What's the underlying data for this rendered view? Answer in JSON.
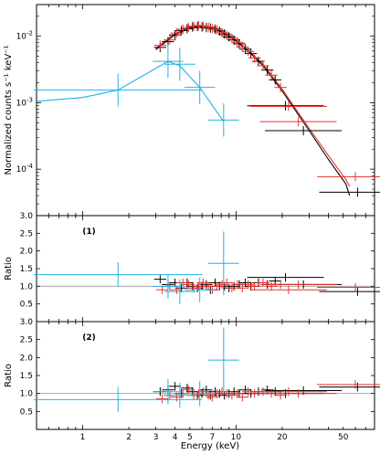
{
  "colors": {
    "black": "#000000",
    "red": "#e8322c",
    "cyan": "#1fb3e8",
    "refline": "#9a9a9a"
  },
  "chart_data": {
    "type": "scatter",
    "xlabel": "Energy (keV)",
    "xscale": "log",
    "xlim": [
      0.5,
      80
    ],
    "xticks": [
      "1",
      "2",
      "3",
      "4",
      "5",
      "7",
      "10",
      "20",
      "50"
    ],
    "panels": [
      {
        "id": "spectrum",
        "ylabel": "Normalized counts s⁻¹ keV⁻¹",
        "yscale": "log",
        "ylim": [
          2e-05,
          0.03
        ],
        "yticks": [
          {
            "base": "10",
            "exp": "-4"
          },
          {
            "base": "10",
            "exp": "-3"
          },
          {
            "base": "10",
            "exp": "-2"
          }
        ],
        "series": [
          {
            "color": "black",
            "points": [
              [
                3.2,
                0.0068
              ],
              [
                3.6,
                0.0083
              ],
              [
                4.0,
                0.0105
              ],
              [
                4.4,
                0.0122
              ],
              [
                4.8,
                0.013
              ],
              [
                5.2,
                0.0138
              ],
              [
                5.6,
                0.014
              ],
              [
                6.0,
                0.0138
              ],
              [
                6.4,
                0.0135
              ],
              [
                6.8,
                0.0133
              ],
              [
                7.3,
                0.0128
              ],
              [
                7.8,
                0.012
              ],
              [
                8.4,
                0.0108
              ],
              [
                9.0,
                0.0098
              ],
              [
                9.7,
                0.0088
              ],
              [
                10.5,
                0.0077
              ],
              [
                11.5,
                0.0064
              ],
              [
                12.5,
                0.0055
              ],
              [
                14.0,
                0.0042
              ],
              [
                16.0,
                0.0031
              ],
              [
                18.0,
                0.0022
              ],
              [
                21.0,
                0.0009
              ],
              [
                27.5,
                0.00038
              ],
              [
                62.0,
                4.5e-05
              ]
            ],
            "model": [
              [
                3.0,
                0.0063
              ],
              [
                4.0,
                0.0106
              ],
              [
                5.0,
                0.0132
              ],
              [
                6.0,
                0.0138
              ],
              [
                7.0,
                0.0131
              ],
              [
                8.0,
                0.0117
              ],
              [
                10.0,
                0.0085
              ],
              [
                12.0,
                0.006
              ],
              [
                15.0,
                0.0036
              ],
              [
                20.0,
                0.0015
              ],
              [
                30.0,
                0.00038
              ],
              [
                40.0,
                0.00014
              ],
              [
                52.0,
                6e-05
              ],
              [
                55.0,
                4e-05
              ]
            ]
          },
          {
            "color": "red",
            "points": [
              [
                3.2,
                0.0073
              ],
              [
                3.7,
                0.0088
              ],
              [
                4.1,
                0.0112
              ],
              [
                4.5,
                0.0128
              ],
              [
                4.9,
                0.0136
              ],
              [
                5.3,
                0.0142
              ],
              [
                5.7,
                0.0146
              ],
              [
                6.1,
                0.0142
              ],
              [
                6.6,
                0.0138
              ],
              [
                7.0,
                0.0131
              ],
              [
                7.5,
                0.0126
              ],
              [
                8.1,
                0.0113
              ],
              [
                8.7,
                0.0103
              ],
              [
                9.4,
                0.0094
              ],
              [
                10.2,
                0.0081
              ],
              [
                11.0,
                0.0069
              ],
              [
                12.0,
                0.0059
              ],
              [
                13.2,
                0.0047
              ],
              [
                15.0,
                0.0036
              ],
              [
                17.0,
                0.0026
              ],
              [
                19.5,
                0.0017
              ],
              [
                22.0,
                0.00088
              ],
              [
                25.5,
                0.00052
              ],
              [
                60.0,
                7.7e-05
              ]
            ],
            "model": [
              [
                3.0,
                0.0066
              ],
              [
                4.0,
                0.011
              ],
              [
                5.0,
                0.0136
              ],
              [
                6.0,
                0.0142
              ],
              [
                7.0,
                0.0135
              ],
              [
                8.0,
                0.012
              ],
              [
                10.0,
                0.0088
              ],
              [
                12.0,
                0.0062
              ],
              [
                15.0,
                0.0038
              ],
              [
                20.0,
                0.0016
              ],
              [
                30.0,
                0.00041
              ],
              [
                40.0,
                0.00016
              ],
              [
                52.0,
                7e-05
              ],
              [
                55.0,
                5.5e-05
              ]
            ]
          },
          {
            "color": "cyan",
            "points": [
              [
                1.7,
                0.00155
              ],
              [
                3.6,
                0.0042
              ],
              [
                4.3,
                0.0038
              ],
              [
                5.8,
                0.0017
              ],
              [
                8.3,
                0.00055
              ]
            ],
            "model": [
              [
                0.5,
                0.00105
              ],
              [
                1.0,
                0.0012
              ],
              [
                1.7,
                0.00155
              ],
              [
                3.6,
                0.0042
              ],
              [
                4.3,
                0.0036
              ],
              [
                5.8,
                0.0017
              ],
              [
                8.3,
                0.00052
              ]
            ]
          }
        ]
      },
      {
        "id": "ratio1",
        "ylabel": "Ratio",
        "label": "(1)",
        "ylim": [
          0,
          3.0
        ],
        "yticks": [
          "0.5",
          "1.0",
          "1.5",
          "2.0",
          "2.5",
          "3.0"
        ],
        "series": [
          {
            "color": "black",
            "points": [
              [
                3.2,
                1.2
              ],
              [
                3.6,
                1.05
              ],
              [
                4.0,
                1.1
              ],
              [
                4.4,
                0.95
              ],
              [
                4.8,
                1.1
              ],
              [
                5.2,
                1.0
              ],
              [
                5.6,
                0.95
              ],
              [
                6.0,
                1.0
              ],
              [
                6.4,
                1.05
              ],
              [
                6.8,
                0.9
              ],
              [
                7.3,
                1.1
              ],
              [
                7.8,
                1.0
              ],
              [
                8.4,
                1.0
              ],
              [
                9.0,
                0.95
              ],
              [
                9.7,
                1.0
              ],
              [
                10.5,
                1.05
              ],
              [
                11.5,
                1.1
              ],
              [
                12.5,
                1.0
              ],
              [
                14.0,
                1.1
              ],
              [
                16.0,
                1.05
              ],
              [
                18.0,
                1.15
              ],
              [
                21.0,
                1.25
              ],
              [
                27.5,
                1.05
              ],
              [
                62.0,
                0.85
              ]
            ]
          },
          {
            "color": "red",
            "points": [
              [
                3.3,
                0.9
              ],
              [
                3.7,
                1.0
              ],
              [
                4.1,
                0.9
              ],
              [
                4.5,
                1.1
              ],
              [
                4.9,
                1.05
              ],
              [
                5.3,
                0.95
              ],
              [
                5.7,
                1.0
              ],
              [
                6.1,
                1.1
              ],
              [
                6.6,
                1.0
              ],
              [
                7.0,
                0.9
              ],
              [
                7.5,
                1.0
              ],
              [
                8.1,
                1.05
              ],
              [
                8.7,
                1.1
              ],
              [
                9.4,
                0.95
              ],
              [
                10.2,
                1.05
              ],
              [
                11.0,
                0.95
              ],
              [
                12.0,
                1.05
              ],
              [
                13.2,
                1.0
              ],
              [
                15.0,
                1.1
              ],
              [
                17.0,
                1.0
              ],
              [
                19.5,
                1.05
              ],
              [
                22.0,
                0.9
              ],
              [
                25.5,
                1.05
              ],
              [
                60.0,
                0.97
              ]
            ]
          },
          {
            "color": "cyan",
            "points": [
              [
                1.7,
                1.33
              ],
              [
                3.6,
                1.0
              ],
              [
                4.3,
                0.85
              ],
              [
                5.8,
                0.9
              ],
              [
                8.3,
                1.65
              ]
            ]
          }
        ]
      },
      {
        "id": "ratio2",
        "ylabel": "Ratio",
        "label": "(2)",
        "ylim": [
          0,
          3.0
        ],
        "yticks": [
          "0.5",
          "1.0",
          "1.5",
          "2.0",
          "2.5",
          "3.0"
        ],
        "series": [
          {
            "color": "black",
            "points": [
              [
                3.2,
                1.05
              ],
              [
                3.6,
                1.1
              ],
              [
                4.0,
                1.2
              ],
              [
                4.4,
                1.0
              ],
              [
                4.8,
                1.15
              ],
              [
                5.2,
                1.05
              ],
              [
                5.6,
                0.95
              ],
              [
                6.0,
                1.0
              ],
              [
                6.4,
                1.1
              ],
              [
                6.8,
                0.95
              ],
              [
                7.3,
                1.05
              ],
              [
                7.8,
                1.0
              ],
              [
                8.4,
                0.95
              ],
              [
                9.0,
                1.0
              ],
              [
                9.7,
                1.05
              ],
              [
                10.5,
                1.0
              ],
              [
                11.5,
                1.1
              ],
              [
                12.5,
                1.0
              ],
              [
                14.0,
                1.05
              ],
              [
                16.0,
                1.1
              ],
              [
                18.0,
                1.05
              ],
              [
                21.0,
                1.0
              ],
              [
                27.5,
                1.08
              ],
              [
                62.0,
                1.18
              ]
            ]
          },
          {
            "color": "red",
            "points": [
              [
                3.3,
                0.85
              ],
              [
                3.7,
                0.95
              ],
              [
                4.1,
                0.9
              ],
              [
                4.5,
                1.0
              ],
              [
                4.9,
                1.1
              ],
              [
                5.3,
                0.95
              ],
              [
                5.7,
                1.0
              ],
              [
                6.1,
                1.05
              ],
              [
                6.6,
                0.95
              ],
              [
                7.0,
                0.9
              ],
              [
                7.5,
                1.0
              ],
              [
                8.1,
                1.05
              ],
              [
                8.7,
                1.0
              ],
              [
                9.4,
                0.95
              ],
              [
                10.2,
                1.0
              ],
              [
                11.0,
                0.9
              ],
              [
                12.0,
                1.05
              ],
              [
                13.2,
                1.0
              ],
              [
                15.0,
                1.05
              ],
              [
                17.0,
                1.0
              ],
              [
                19.5,
                0.95
              ],
              [
                22.0,
                1.05
              ],
              [
                25.5,
                1.0
              ],
              [
                60.0,
                1.25
              ]
            ]
          },
          {
            "color": "cyan",
            "points": [
              [
                1.7,
                0.83
              ],
              [
                3.6,
                1.05
              ],
              [
                4.3,
                0.95
              ],
              [
                5.8,
                1.0
              ],
              [
                8.3,
                1.93
              ]
            ]
          }
        ]
      }
    ]
  }
}
